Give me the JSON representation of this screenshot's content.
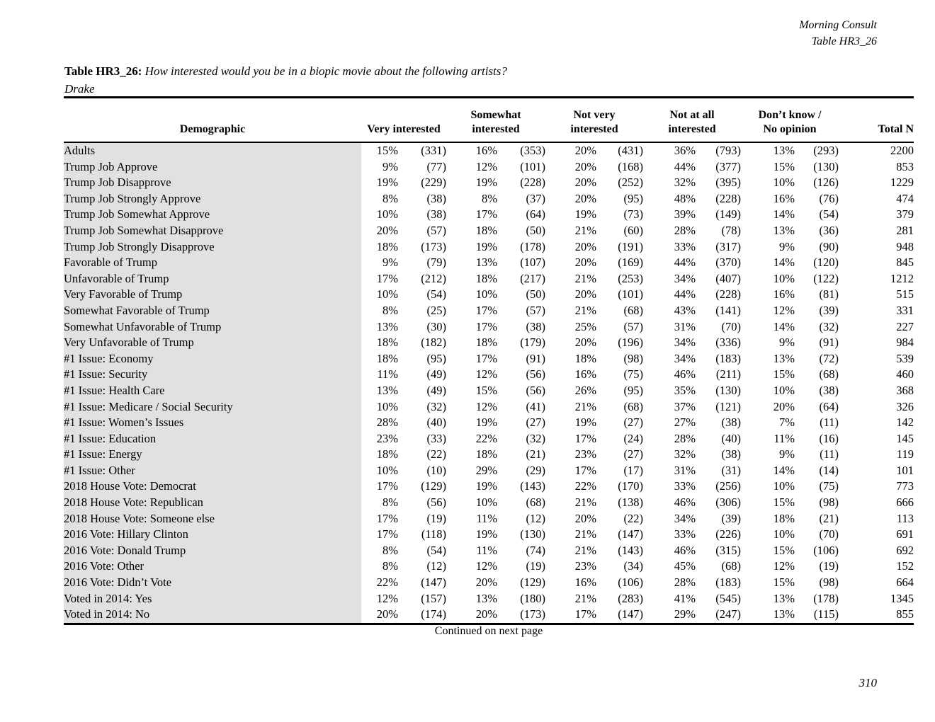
{
  "page": {
    "brand": "Morning Consult",
    "table_ref": "Table HR3_26",
    "continued_note": "Continued on next page",
    "page_number": "310"
  },
  "title": {
    "label": "Table HR3_26:",
    "question": "How interested would you be in a biopic movie about the following artists?",
    "subject": "Drake"
  },
  "colors": {
    "demographic_column_bg": "#e1e1e1",
    "text": "#000000",
    "page_bg": "#ffffff"
  },
  "table": {
    "demographic_header": "Demographic",
    "col_headers": [
      {
        "line1": "",
        "line2": "Very interested"
      },
      {
        "line1": "Somewhat",
        "line2": "interested"
      },
      {
        "line1": "Not very",
        "line2": "interested"
      },
      {
        "line1": "Not at all",
        "line2": "interested"
      },
      {
        "line1": "Don’t know /",
        "line2": "No opinion"
      }
    ],
    "total_header": "Total N",
    "rows": [
      {
        "label": "Adults",
        "cells": [
          "15%",
          "(331)",
          "16%",
          "(353)",
          "20%",
          "(431)",
          "36%",
          "(793)",
          "13%",
          "(293)",
          "2200"
        ]
      },
      {
        "label": "Trump Job Approve",
        "cells": [
          "9%",
          "(77)",
          "12%",
          "(101)",
          "20%",
          "(168)",
          "44%",
          "(377)",
          "15%",
          "(130)",
          "853"
        ]
      },
      {
        "label": "Trump Job Disapprove",
        "cells": [
          "19%",
          "(229)",
          "19%",
          "(228)",
          "20%",
          "(252)",
          "32%",
          "(395)",
          "10%",
          "(126)",
          "1229"
        ]
      },
      {
        "label": "Trump Job Strongly Approve",
        "cells": [
          "8%",
          "(38)",
          "8%",
          "(37)",
          "20%",
          "(95)",
          "48%",
          "(228)",
          "16%",
          "(76)",
          "474"
        ]
      },
      {
        "label": "Trump Job Somewhat Approve",
        "cells": [
          "10%",
          "(38)",
          "17%",
          "(64)",
          "19%",
          "(73)",
          "39%",
          "(149)",
          "14%",
          "(54)",
          "379"
        ]
      },
      {
        "label": "Trump Job Somewhat Disapprove",
        "cells": [
          "20%",
          "(57)",
          "18%",
          "(50)",
          "21%",
          "(60)",
          "28%",
          "(78)",
          "13%",
          "(36)",
          "281"
        ]
      },
      {
        "label": "Trump Job Strongly Disapprove",
        "cells": [
          "18%",
          "(173)",
          "19%",
          "(178)",
          "20%",
          "(191)",
          "33%",
          "(317)",
          "9%",
          "(90)",
          "948"
        ]
      },
      {
        "label": "Favorable of Trump",
        "cells": [
          "9%",
          "(79)",
          "13%",
          "(107)",
          "20%",
          "(169)",
          "44%",
          "(370)",
          "14%",
          "(120)",
          "845"
        ]
      },
      {
        "label": "Unfavorable of Trump",
        "cells": [
          "17%",
          "(212)",
          "18%",
          "(217)",
          "21%",
          "(253)",
          "34%",
          "(407)",
          "10%",
          "(122)",
          "1212"
        ]
      },
      {
        "label": "Very Favorable of Trump",
        "cells": [
          "10%",
          "(54)",
          "10%",
          "(50)",
          "20%",
          "(101)",
          "44%",
          "(228)",
          "16%",
          "(81)",
          "515"
        ]
      },
      {
        "label": "Somewhat Favorable of Trump",
        "cells": [
          "8%",
          "(25)",
          "17%",
          "(57)",
          "21%",
          "(68)",
          "43%",
          "(141)",
          "12%",
          "(39)",
          "331"
        ]
      },
      {
        "label": "Somewhat Unfavorable of Trump",
        "cells": [
          "13%",
          "(30)",
          "17%",
          "(38)",
          "25%",
          "(57)",
          "31%",
          "(70)",
          "14%",
          "(32)",
          "227"
        ]
      },
      {
        "label": "Very Unfavorable of Trump",
        "cells": [
          "18%",
          "(182)",
          "18%",
          "(179)",
          "20%",
          "(196)",
          "34%",
          "(336)",
          "9%",
          "(91)",
          "984"
        ]
      },
      {
        "label": "#1 Issue: Economy",
        "cells": [
          "18%",
          "(95)",
          "17%",
          "(91)",
          "18%",
          "(98)",
          "34%",
          "(183)",
          "13%",
          "(72)",
          "539"
        ]
      },
      {
        "label": "#1 Issue: Security",
        "cells": [
          "11%",
          "(49)",
          "12%",
          "(56)",
          "16%",
          "(75)",
          "46%",
          "(211)",
          "15%",
          "(68)",
          "460"
        ]
      },
      {
        "label": "#1 Issue: Health Care",
        "cells": [
          "13%",
          "(49)",
          "15%",
          "(56)",
          "26%",
          "(95)",
          "35%",
          "(130)",
          "10%",
          "(38)",
          "368"
        ]
      },
      {
        "label": "#1 Issue: Medicare / Social Security",
        "cells": [
          "10%",
          "(32)",
          "12%",
          "(41)",
          "21%",
          "(68)",
          "37%",
          "(121)",
          "20%",
          "(64)",
          "326"
        ]
      },
      {
        "label": "#1 Issue: Women’s Issues",
        "cells": [
          "28%",
          "(40)",
          "19%",
          "(27)",
          "19%",
          "(27)",
          "27%",
          "(38)",
          "7%",
          "(11)",
          "142"
        ]
      },
      {
        "label": "#1 Issue: Education",
        "cells": [
          "23%",
          "(33)",
          "22%",
          "(32)",
          "17%",
          "(24)",
          "28%",
          "(40)",
          "11%",
          "(16)",
          "145"
        ]
      },
      {
        "label": "#1 Issue: Energy",
        "cells": [
          "18%",
          "(22)",
          "18%",
          "(21)",
          "23%",
          "(27)",
          "32%",
          "(38)",
          "9%",
          "(11)",
          "119"
        ]
      },
      {
        "label": "#1 Issue: Other",
        "cells": [
          "10%",
          "(10)",
          "29%",
          "(29)",
          "17%",
          "(17)",
          "31%",
          "(31)",
          "14%",
          "(14)",
          "101"
        ]
      },
      {
        "label": "2018 House Vote: Democrat",
        "cells": [
          "17%",
          "(129)",
          "19%",
          "(143)",
          "22%",
          "(170)",
          "33%",
          "(256)",
          "10%",
          "(75)",
          "773"
        ]
      },
      {
        "label": "2018 House Vote: Republican",
        "cells": [
          "8%",
          "(56)",
          "10%",
          "(68)",
          "21%",
          "(138)",
          "46%",
          "(306)",
          "15%",
          "(98)",
          "666"
        ]
      },
      {
        "label": "2018 House Vote: Someone else",
        "cells": [
          "17%",
          "(19)",
          "11%",
          "(12)",
          "20%",
          "(22)",
          "34%",
          "(39)",
          "18%",
          "(21)",
          "113"
        ]
      },
      {
        "label": "2016 Vote: Hillary Clinton",
        "cells": [
          "17%",
          "(118)",
          "19%",
          "(130)",
          "21%",
          "(147)",
          "33%",
          "(226)",
          "10%",
          "(70)",
          "691"
        ]
      },
      {
        "label": "2016 Vote: Donald Trump",
        "cells": [
          "8%",
          "(54)",
          "11%",
          "(74)",
          "21%",
          "(143)",
          "46%",
          "(315)",
          "15%",
          "(106)",
          "692"
        ]
      },
      {
        "label": "2016 Vote: Other",
        "cells": [
          "8%",
          "(12)",
          "12%",
          "(19)",
          "23%",
          "(34)",
          "45%",
          "(68)",
          "12%",
          "(19)",
          "152"
        ]
      },
      {
        "label": "2016 Vote: Didn’t Vote",
        "cells": [
          "22%",
          "(147)",
          "20%",
          "(129)",
          "16%",
          "(106)",
          "28%",
          "(183)",
          "15%",
          "(98)",
          "664"
        ]
      },
      {
        "label": "Voted in 2014: Yes",
        "cells": [
          "12%",
          "(157)",
          "13%",
          "(180)",
          "21%",
          "(283)",
          "41%",
          "(545)",
          "13%",
          "(178)",
          "1345"
        ]
      },
      {
        "label": "Voted in 2014: No",
        "cells": [
          "20%",
          "(174)",
          "20%",
          "(173)",
          "17%",
          "(147)",
          "29%",
          "(247)",
          "13%",
          "(115)",
          "855"
        ]
      }
    ]
  }
}
